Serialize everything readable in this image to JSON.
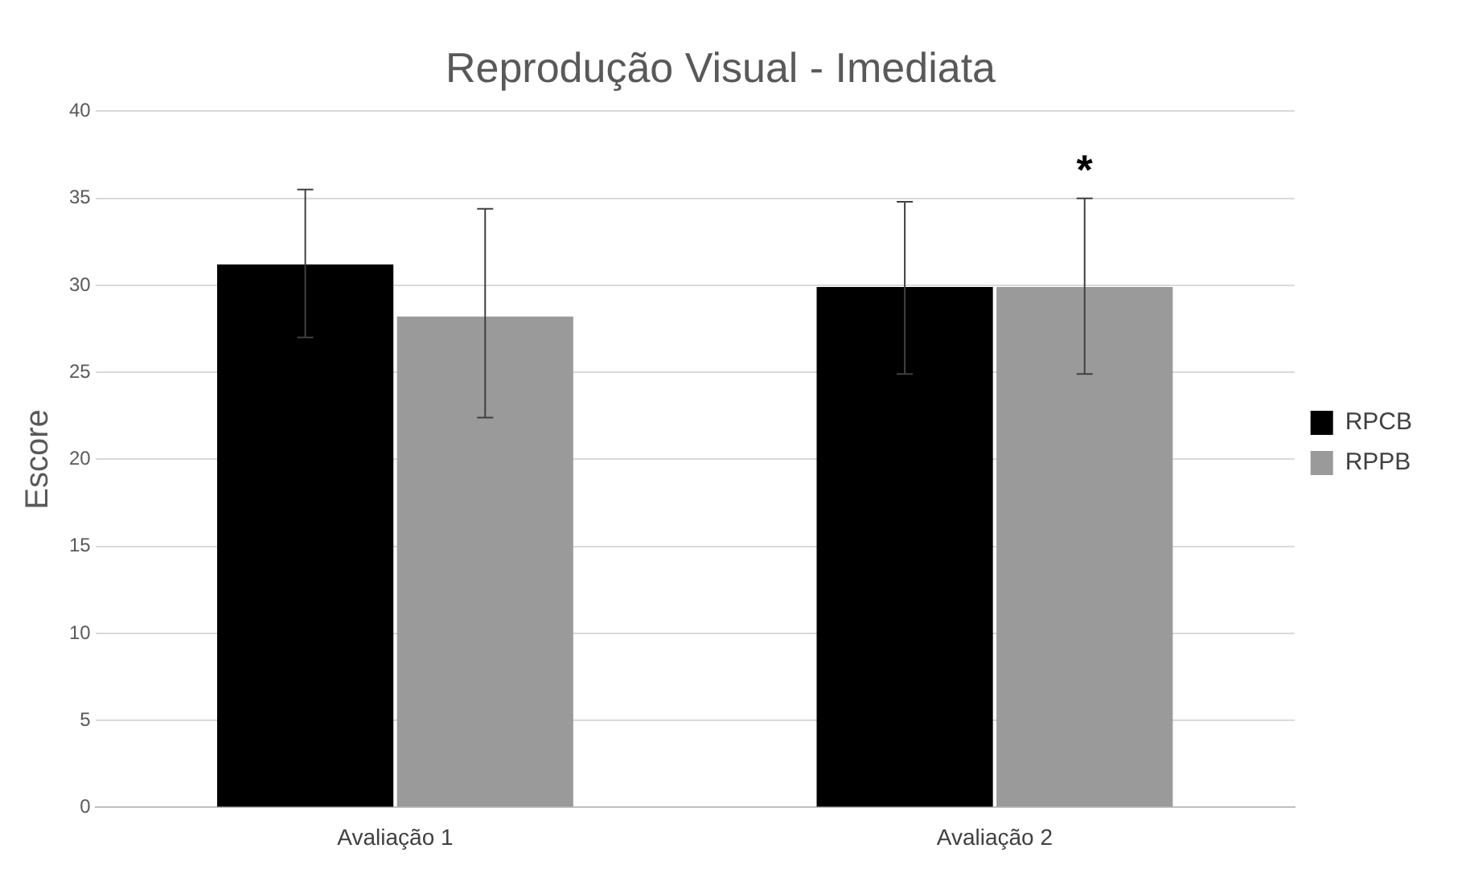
{
  "chart_data": {
    "type": "bar",
    "title": "Reprodução Visual - Imediata",
    "ylabel": "Escore",
    "categories": [
      "Avaliação 1",
      "Avaliação 2"
    ],
    "series": [
      {
        "name": "RPCB",
        "color": "#000000",
        "values": [
          31.2,
          29.9
        ],
        "errors": [
          [
            27.0,
            35.5
          ],
          [
            24.9,
            34.8
          ]
        ]
      },
      {
        "name": "RPPB",
        "color": "#9a9a9a",
        "values": [
          28.2,
          29.9
        ],
        "errors": [
          [
            22.4,
            34.4
          ],
          [
            24.9,
            35.0
          ]
        ]
      }
    ],
    "ylim": [
      0,
      40
    ],
    "yticks": [
      0,
      5,
      10,
      15,
      20,
      25,
      30,
      35,
      40
    ],
    "grid": "y",
    "legend": "right",
    "annotations": [
      "*"
    ]
  }
}
